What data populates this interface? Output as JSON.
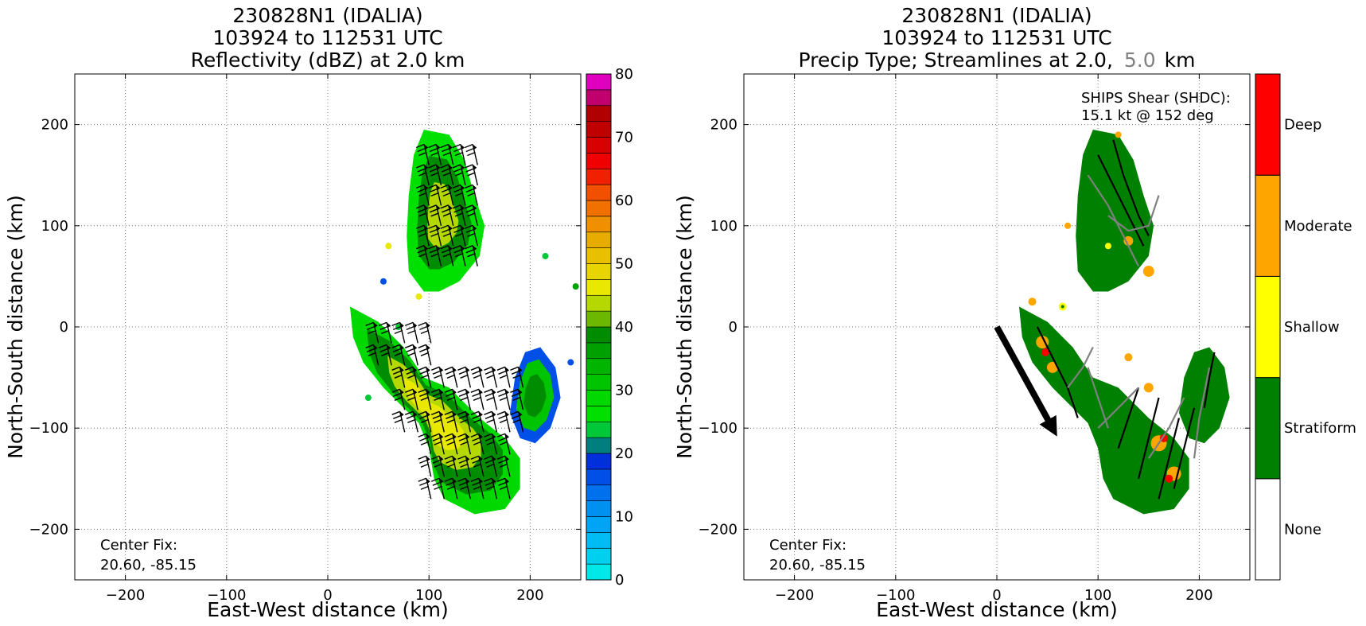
{
  "chart_data": [
    {
      "type": "heatmap",
      "title_lines": [
        "230828N1 (IDALIA)",
        "103924 to 112531 UTC",
        "Reflectivity (dBZ) at 2.0 km"
      ],
      "xlabel": "East-West distance (km)",
      "ylabel": "North-South distance (km)",
      "xlim": [
        -250,
        250
      ],
      "ylim": [
        -250,
        250
      ],
      "xticks": [
        -200,
        -100,
        0,
        100,
        200
      ],
      "yticks": [
        -200,
        -100,
        0,
        100,
        200
      ],
      "xtick_labels": [
        "−200",
        "−100",
        "0",
        "100",
        "200"
      ],
      "ytick_labels": [
        "−200",
        "−100",
        "0",
        "100",
        "200"
      ],
      "grid": true,
      "annotation_lines": [
        "Center Fix:",
        "20.60, -85.15"
      ],
      "colorbar": {
        "label_values": [
          0,
          10,
          20,
          30,
          40,
          50,
          60,
          70,
          80
        ],
        "range": [
          0,
          80
        ],
        "step": 2.5,
        "colors": [
          "#00e8e8",
          "#00d0f0",
          "#00bcf4",
          "#00a4f4",
          "#0090f0",
          "#0070ec",
          "#0050e8",
          "#0030dc",
          "#007f7f",
          "#00c838",
          "#00e000",
          "#00d800",
          "#00c400",
          "#00b400",
          "#00a000",
          "#008c00",
          "#6cb800",
          "#b4d800",
          "#e8e800",
          "#e8d400",
          "#e8c000",
          "#e8ac00",
          "#f09000",
          "#f07000",
          "#f05000",
          "#f02000",
          "#f00000",
          "#d80000",
          "#c00000",
          "#b00000",
          "#c0006c",
          "#e000c0",
          "#f000f0",
          "#c040e0",
          "#a050d0",
          "#7840a0",
          "#402060",
          "#000000"
        ]
      },
      "wind_barbs": true,
      "rain_regions": {
        "outer_band": [
          [
            22,
            20
          ],
          [
            50,
            5
          ],
          [
            75,
            -20
          ],
          [
            95,
            -50
          ],
          [
            120,
            -60
          ],
          [
            150,
            -90
          ],
          [
            175,
            -110
          ],
          [
            190,
            -130
          ],
          [
            190,
            -160
          ],
          [
            175,
            -180
          ],
          [
            145,
            -185
          ],
          [
            115,
            -170
          ],
          [
            105,
            -150
          ],
          [
            100,
            -120
          ],
          [
            90,
            -95
          ],
          [
            70,
            -75
          ],
          [
            55,
            -60
          ],
          [
            35,
            -35
          ],
          [
            25,
            -10
          ]
        ],
        "north_cell": [
          [
            95,
            195
          ],
          [
            120,
            190
          ],
          [
            135,
            165
          ],
          [
            145,
            130
          ],
          [
            155,
            100
          ],
          [
            150,
            70
          ],
          [
            130,
            45
          ],
          [
            110,
            35
          ],
          [
            95,
            35
          ],
          [
            80,
            55
          ],
          [
            78,
            90
          ],
          [
            80,
            130
          ],
          [
            85,
            170
          ]
        ],
        "east_cell": [
          [
            195,
            -25
          ],
          [
            210,
            -20
          ],
          [
            225,
            -40
          ],
          [
            230,
            -70
          ],
          [
            220,
            -100
          ],
          [
            205,
            -115
          ],
          [
            190,
            -110
          ],
          [
            180,
            -85
          ],
          [
            185,
            -50
          ]
        ]
      }
    },
    {
      "type": "heatmap",
      "title_lines": [
        "230828N1 (IDALIA)",
        "103924 to 112531 UTC",
        "Precip Type; Streamlines at 2.0,",
        "5.0",
        "km"
      ],
      "xlabel": "East-West distance (km)",
      "ylabel": "North-South distance (km)",
      "xlim": [
        -250,
        250
      ],
      "ylim": [
        -250,
        250
      ],
      "xticks": [
        -200,
        -100,
        0,
        100,
        200
      ],
      "yticks": [
        -200,
        -100,
        0,
        100,
        200
      ],
      "xtick_labels": [
        "−200",
        "−100",
        "0",
        "100",
        "200"
      ],
      "ytick_labels": [
        "−200",
        "−100",
        "0",
        "100",
        "200"
      ],
      "grid": true,
      "annotation_lines": [
        "Center Fix:",
        "20.60, -85.15"
      ],
      "shear_lines": [
        "SHIPS Shear (SHDC):",
        "15.1 kt @ 152 deg"
      ],
      "shear": {
        "speed_kt": 15.1,
        "direction_deg": 152
      },
      "categories": [
        "None",
        "Stratiform",
        "Shallow",
        "Moderate",
        "Deep"
      ],
      "category_colors": [
        "#ffffff",
        "#008000",
        "#ffff00",
        "#ffa500",
        "#ff0000"
      ],
      "streamline_colors": {
        "2.0": "#000000",
        "5.0": "#808080"
      },
      "highlight_color": "#808080"
    }
  ]
}
